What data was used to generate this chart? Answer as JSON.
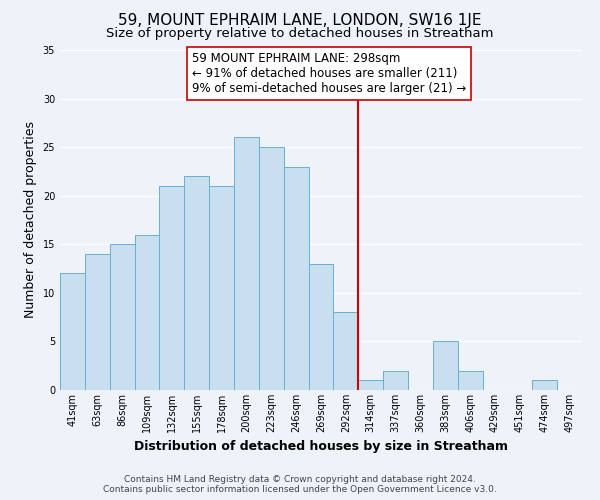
{
  "title": "59, MOUNT EPHRAIM LANE, LONDON, SW16 1JE",
  "subtitle": "Size of property relative to detached houses in Streatham",
  "xlabel": "Distribution of detached houses by size in Streatham",
  "ylabel": "Number of detached properties",
  "footer_line1": "Contains HM Land Registry data © Crown copyright and database right 2024.",
  "footer_line2": "Contains public sector information licensed under the Open Government Licence v3.0.",
  "bin_labels": [
    "41sqm",
    "63sqm",
    "86sqm",
    "109sqm",
    "132sqm",
    "155sqm",
    "178sqm",
    "200sqm",
    "223sqm",
    "246sqm",
    "269sqm",
    "292sqm",
    "314sqm",
    "337sqm",
    "360sqm",
    "383sqm",
    "406sqm",
    "429sqm",
    "451sqm",
    "474sqm",
    "497sqm"
  ],
  "bar_heights": [
    12,
    14,
    15,
    16,
    21,
    22,
    21,
    26,
    25,
    23,
    13,
    8,
    1,
    2,
    0,
    5,
    2,
    0,
    0,
    1,
    0
  ],
  "bar_color": "#c8dff0",
  "bar_edge_color": "#6baed6",
  "vline_x_index": 11,
  "vline_color": "#cc0000",
  "annotation_title": "59 MOUNT EPHRAIM LANE: 298sqm",
  "annotation_line1": "← 91% of detached houses are smaller (211)",
  "annotation_line2": "9% of semi-detached houses are larger (21) →",
  "annotation_box_edge": "#cc0000",
  "ylim": [
    0,
    35
  ],
  "yticks": [
    0,
    5,
    10,
    15,
    20,
    25,
    30,
    35
  ],
  "background_color": "#eef2f9",
  "grid_color": "#ffffff",
  "title_fontsize": 11,
  "subtitle_fontsize": 9.5,
  "axis_label_fontsize": 9,
  "tick_fontsize": 7,
  "annotation_fontsize": 8.5,
  "footer_fontsize": 6.5
}
